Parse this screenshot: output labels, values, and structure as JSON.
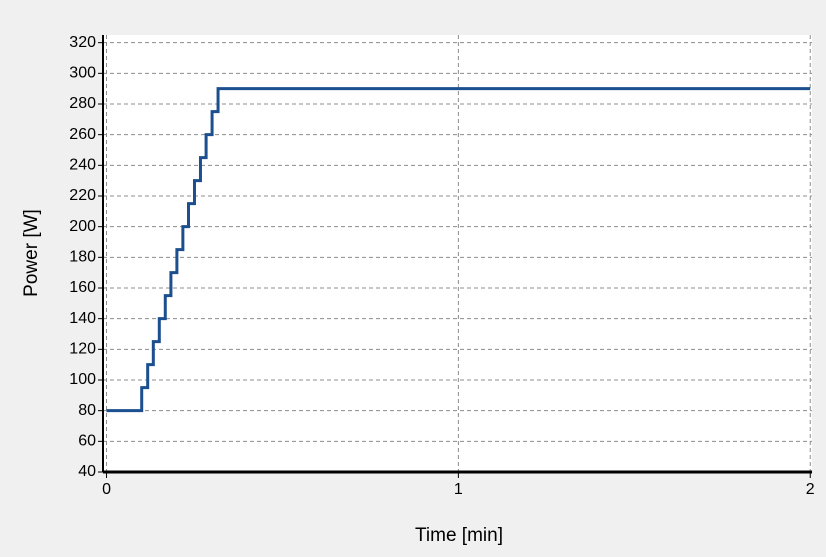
{
  "chart_data": {
    "type": "line",
    "step": "post",
    "x_label": "Time [min]",
    "y_label": "Power [W]",
    "series": [
      {
        "name": "Power",
        "color": "#1c4f8f",
        "x": [
          0,
          0.1,
          0.117,
          0.133,
          0.15,
          0.167,
          0.183,
          0.2,
          0.217,
          0.233,
          0.25,
          0.267,
          0.283,
          0.3,
          0.317,
          2
        ],
        "values": [
          80,
          95,
          110,
          125,
          140,
          155,
          170,
          185,
          200,
          215,
          230,
          245,
          260,
          275,
          290,
          290
        ]
      }
    ],
    "xlim": [
      -0.01,
      2.005
    ],
    "xticks": [
      0,
      1,
      2
    ],
    "ylim": [
      40,
      325
    ],
    "yticks": [
      40,
      60,
      80,
      100,
      120,
      140,
      160,
      180,
      200,
      220,
      240,
      260,
      280,
      300,
      320
    ],
    "grid": true
  }
}
